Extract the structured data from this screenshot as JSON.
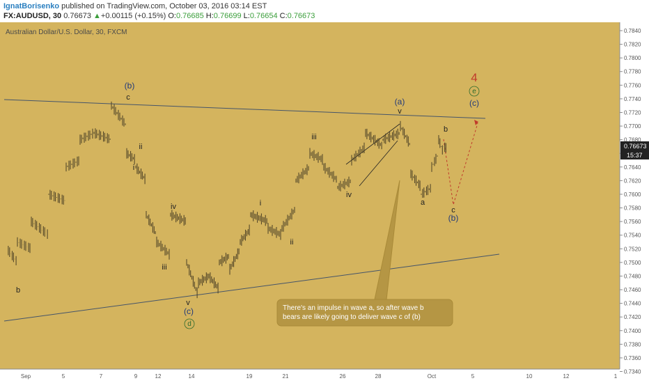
{
  "header": {
    "author": "IgnatBorisenko",
    "published_text": " published on TradingView.com, October 03, 2016 03:14 EST",
    "symbol": "FX:AUDUSD, 30",
    "last": "0.76673",
    "change_arrow": "▲",
    "change": "+0.00115 (+0.15%)",
    "open_label": "O:",
    "open": "0.76685",
    "high_label": "H:",
    "high": "0.76699",
    "low_label": "L:",
    "low": "0.76654",
    "close_label": "C:",
    "close": "0.76673"
  },
  "chart_data": {
    "type": "candlestick",
    "title": "Australian Dollar/U.S. Dollar, 30, FXCM",
    "background": "#d4b45e",
    "price_axis": {
      "ticks": [
        0.784,
        0.782,
        0.78,
        0.778,
        0.776,
        0.774,
        0.772,
        0.77,
        0.768,
        0.766,
        0.764,
        0.762,
        0.76,
        0.758,
        0.756,
        0.754,
        0.752,
        0.75,
        0.748,
        0.746,
        0.744,
        0.742,
        0.74,
        0.738,
        0.736,
        0.734
      ],
      "last_price_label": "0.76673",
      "countdown_label": "15:37"
    },
    "time_axis": [
      "Sep",
      "5",
      "7",
      "9",
      "12",
      "14",
      "19",
      "21",
      "26",
      "28",
      "Oct",
      "5",
      "10",
      "12",
      "1"
    ],
    "price_path": [
      [
        0.752,
        0.75
      ],
      [
        0.753,
        0.752
      ],
      [
        0.756,
        0.754
      ],
      [
        0.76,
        0.759
      ],
      [
        0.764,
        0.765
      ],
      [
        0.768,
        0.769
      ],
      [
        0.769,
        0.768
      ],
      [
        0.773,
        0.77
      ],
      [
        0.766,
        0.765
      ],
      [
        0.764,
        0.762
      ],
      [
        0.757,
        0.754
      ],
      [
        0.753,
        0.751
      ],
      [
        0.757,
        0.756
      ],
      [
        0.75,
        0.745
      ],
      [
        0.747,
        0.748
      ],
      [
        0.748,
        0.746
      ],
      [
        0.75,
        0.751
      ],
      [
        0.749,
        0.752
      ],
      [
        0.753,
        0.755
      ],
      [
        0.757,
        0.756
      ],
      [
        0.755,
        0.754
      ],
      [
        0.755,
        0.758
      ],
      [
        0.762,
        0.764
      ],
      [
        0.766,
        0.765
      ],
      [
        0.764,
        0.762
      ],
      [
        0.761,
        0.762
      ],
      [
        0.765,
        0.767
      ],
      [
        0.769,
        0.767
      ],
      [
        0.768,
        0.769
      ],
      [
        0.77,
        0.767
      ],
      [
        0.763,
        0.761
      ],
      [
        0.76,
        0.761
      ],
      [
        0.764,
        0.766
      ],
      [
        0.768,
        0.766
      ],
      [
        0.767,
        0.7667
      ]
    ],
    "wave_labels": [
      {
        "text": "b"
      },
      {
        "text": "(b)"
      },
      {
        "text": "c"
      },
      {
        "text": "ii"
      },
      {
        "text": "i"
      },
      {
        "text": "iv"
      },
      {
        "text": "iii"
      },
      {
        "text": "v"
      },
      {
        "text": "(c)"
      },
      {
        "text": "d"
      },
      {
        "text": "i"
      },
      {
        "text": "ii"
      },
      {
        "text": "iii"
      },
      {
        "text": "iv"
      },
      {
        "text": "(a)"
      },
      {
        "text": "v"
      },
      {
        "text": "a"
      },
      {
        "text": "b"
      },
      {
        "text": "c"
      },
      {
        "text": "(b)"
      },
      {
        "text": "4"
      },
      {
        "text": "e"
      },
      {
        "text": "(c)"
      }
    ],
    "annotation": "There's an impulse in wave a, so after wave b bears are likely going to deliver wave c of (b)"
  }
}
